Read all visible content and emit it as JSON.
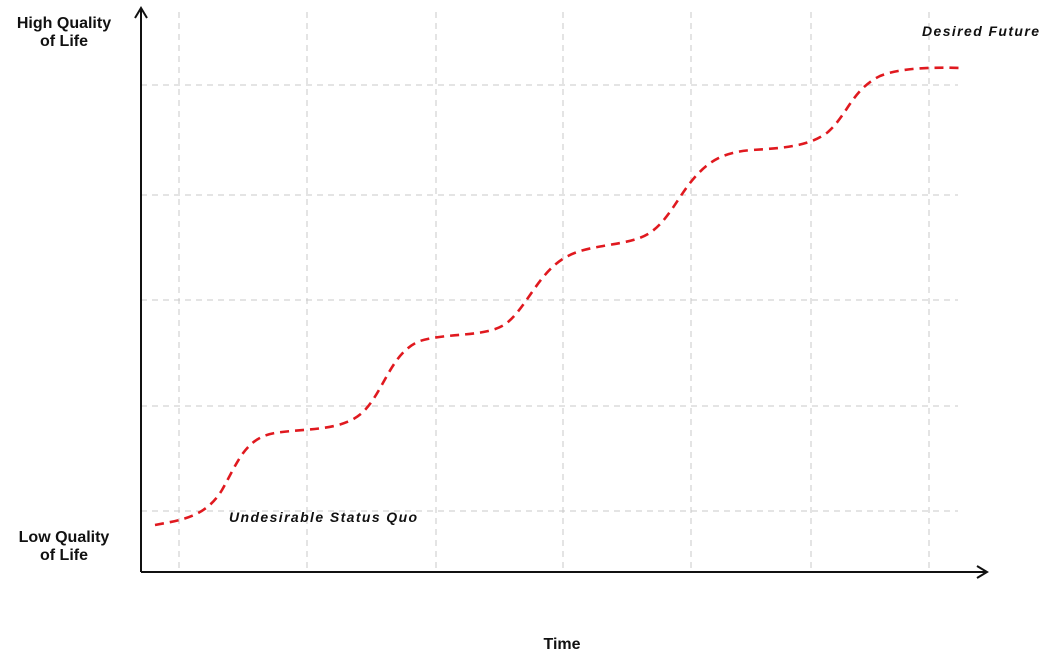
{
  "axes": {
    "y_top_label": [
      "High Quality",
      "of Life"
    ],
    "y_bottom_label": [
      "Low Quality",
      "of Life"
    ],
    "x_label": "Time"
  },
  "annotations": {
    "start": "Undesirable Status Quo",
    "end": "Desired Future"
  },
  "colors": {
    "trajectory": "#e0191f",
    "axis": "#111111",
    "grid": "#c8c8c8"
  }
}
